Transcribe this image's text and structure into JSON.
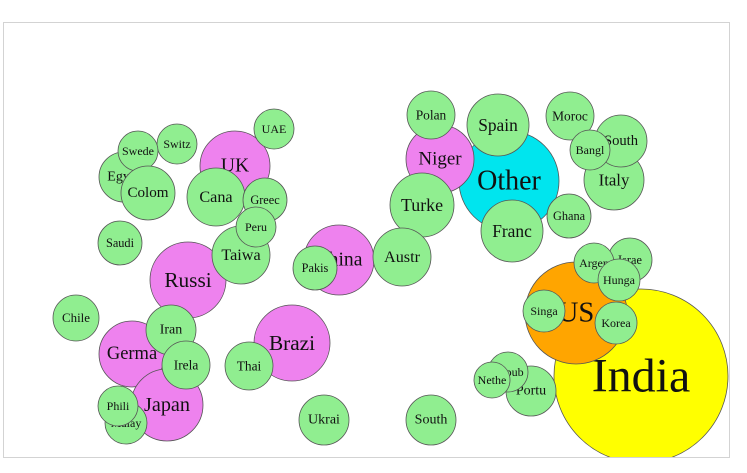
{
  "chart_data": {
    "type": "bubble",
    "title": "",
    "colors": {
      "small": "#90ee90",
      "medium": "#ee82ee",
      "large1": "#ffa500",
      "large2": "#00e5ee",
      "largest": "#ffff00",
      "stroke": "#555555"
    },
    "bubbles": [
      {
        "label": "India",
        "value": 100,
        "group": "largest"
      },
      {
        "label": "US",
        "value": 33,
        "group": "large1"
      },
      {
        "label": "Other",
        "value": 20,
        "group": "large2"
      },
      {
        "label": "Brazi",
        "value": 12,
        "group": "medium"
      },
      {
        "label": "Russi",
        "value": 12,
        "group": "medium"
      },
      {
        "label": "UK",
        "value": 10,
        "group": "medium"
      },
      {
        "label": "Germa",
        "value": 10,
        "group": "medium"
      },
      {
        "label": "Japan",
        "value": 10,
        "group": "medium"
      },
      {
        "label": "China",
        "value": 10,
        "group": "medium"
      },
      {
        "label": "Niger",
        "value": 8,
        "group": "medium"
      },
      {
        "label": "Turke",
        "value": 8,
        "group": "small"
      },
      {
        "label": "Spain",
        "value": 7,
        "group": "small"
      },
      {
        "label": "Franc",
        "value": 8,
        "group": "small"
      },
      {
        "label": "Italy",
        "value": 6,
        "group": "small"
      },
      {
        "label": "Austr",
        "value": 7,
        "group": "small"
      },
      {
        "label": "Taiwa",
        "value": 7,
        "group": "small"
      },
      {
        "label": "Cana",
        "value": 7,
        "group": "small"
      },
      {
        "label": "Iran",
        "value": 5,
        "group": "small"
      },
      {
        "label": "Portu",
        "value": 5,
        "group": "small"
      },
      {
        "label": "Thai",
        "value": 5,
        "group": "small"
      },
      {
        "label": "Ukrai",
        "value": 5,
        "group": "small"
      },
      {
        "label": "South",
        "value": 5,
        "group": "small"
      },
      {
        "label": "South",
        "value": 5,
        "group": "small"
      },
      {
        "label": "Polan",
        "value": 5,
        "group": "small"
      },
      {
        "label": "Moroc",
        "value": 5,
        "group": "small"
      },
      {
        "label": "Egypt",
        "value": 5,
        "group": "small"
      },
      {
        "label": "Irela",
        "value": 4,
        "group": "small"
      },
      {
        "label": "Ghana",
        "value": 4,
        "group": "small"
      },
      {
        "label": "Israe",
        "value": 4,
        "group": "small"
      },
      {
        "label": "Chile",
        "value": 4,
        "group": "small"
      },
      {
        "label": "Saudi",
        "value": 4,
        "group": "small"
      },
      {
        "label": "Greec",
        "value": 4,
        "group": "small"
      },
      {
        "label": "Switz",
        "value": 4,
        "group": "small"
      },
      {
        "label": "UAE",
        "value": 3.5,
        "group": "small"
      },
      {
        "label": "Swede",
        "value": 4,
        "group": "small"
      },
      {
        "label": "Colom",
        "value": 5,
        "group": "small"
      },
      {
        "label": "Peru",
        "value": 3.5,
        "group": "small"
      },
      {
        "label": "Bangl",
        "value": 4,
        "group": "small"
      },
      {
        "label": "Repub",
        "value": 4,
        "group": "small"
      },
      {
        "label": "Nethe",
        "value": 3,
        "group": "small"
      },
      {
        "label": "Malay",
        "value": 4,
        "group": "small"
      },
      {
        "label": "Phili",
        "value": 4,
        "group": "small"
      },
      {
        "label": "Pakis",
        "value": 5,
        "group": "small"
      },
      {
        "label": "Argen",
        "value": 4,
        "group": "small"
      },
      {
        "label": "Hunga",
        "value": 4,
        "group": "small"
      },
      {
        "label": "Singa",
        "value": 4,
        "group": "small"
      },
      {
        "label": "Korea",
        "value": 4,
        "group": "small"
      }
    ]
  }
}
